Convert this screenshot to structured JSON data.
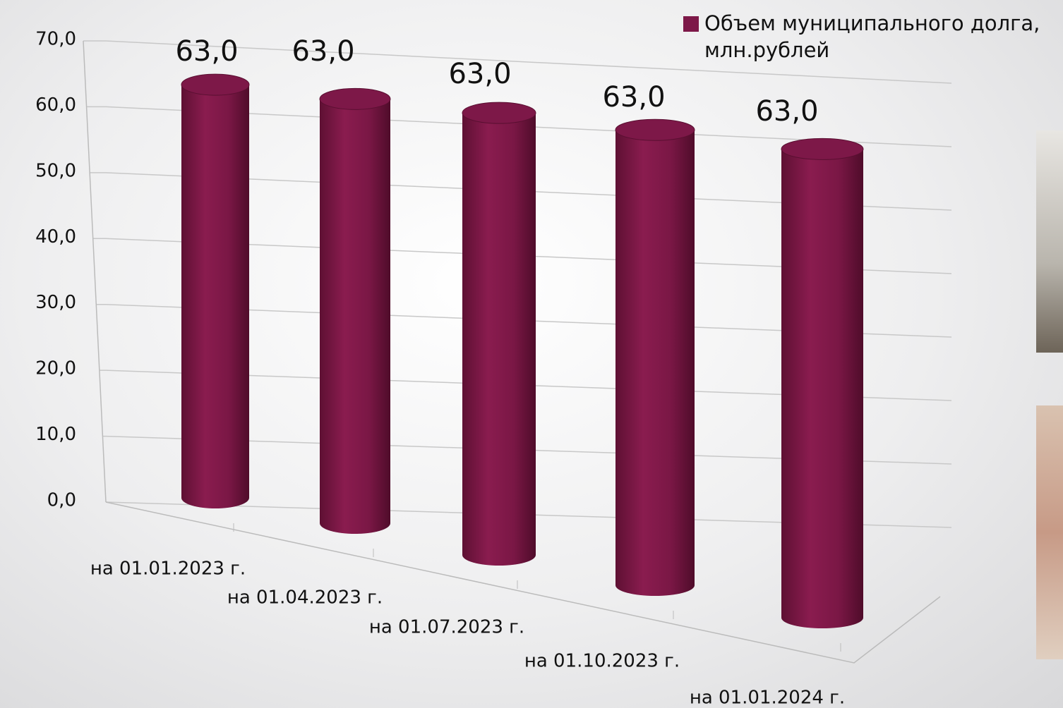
{
  "chart_data": {
    "type": "bar3d",
    "categories": [
      "на 01.01.2023 г.",
      "на 01.04.2023 г.",
      "на 01.07.2023 г.",
      "на 01.10.2023 г.",
      "на 01.01.2024 г."
    ],
    "series": [
      {
        "name": "Объем муниципального долга, млн.рублей",
        "color": "#7d1848",
        "values": [
          63.0,
          63.0,
          63.0,
          63.0,
          63.0
        ],
        "value_labels": [
          "63,0",
          "63,0",
          "63,0",
          "63,0",
          "63,0"
        ]
      }
    ],
    "ylim": [
      0,
      70
    ],
    "yticks": [
      {
        "value": 0,
        "label": "0,0"
      },
      {
        "value": 10,
        "label": "10,0"
      },
      {
        "value": 20,
        "label": "20,0"
      },
      {
        "value": 30,
        "label": "30,0"
      },
      {
        "value": 40,
        "label": "40,0"
      },
      {
        "value": 50,
        "label": "50,0"
      },
      {
        "value": 60,
        "label": "60,0"
      },
      {
        "value": 70,
        "label": "70,0"
      }
    ],
    "grid": true,
    "legend": "top-right"
  }
}
